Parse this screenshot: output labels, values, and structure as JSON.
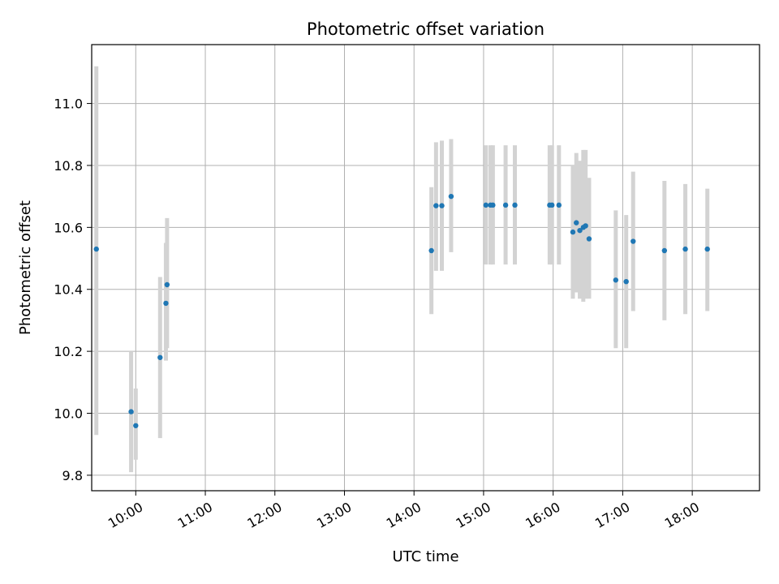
{
  "chart_data": {
    "type": "scatter",
    "title": "Photometric offset variation",
    "xlabel": "UTC time",
    "ylabel": "Photometric offset",
    "xlim": [
      "09:22",
      "18:58"
    ],
    "ylim": [
      9.75,
      11.19
    ],
    "grid": true,
    "legend": "none",
    "x_ticks": [
      "10:00",
      "11:00",
      "12:00",
      "13:00",
      "14:00",
      "15:00",
      "16:00",
      "17:00",
      "18:00"
    ],
    "y_ticks": [
      9.8,
      10.0,
      10.2,
      10.4,
      10.6,
      10.8,
      11.0
    ],
    "marker_color": "#1f77b4",
    "errorbar_color": "#d3d3d3",
    "series": [
      {
        "points": [
          {
            "time": "09:26",
            "y": 10.53,
            "low": 9.93,
            "high": 11.12
          },
          {
            "time": "09:56",
            "y": 10.005,
            "low": 9.81,
            "high": 10.2
          },
          {
            "time": "10:00",
            "y": 9.96,
            "low": 9.85,
            "high": 10.08
          },
          {
            "time": "10:21",
            "y": 10.18,
            "low": 9.92,
            "high": 10.44
          },
          {
            "time": "10:26",
            "y": 10.355,
            "low": 10.17,
            "high": 10.55
          },
          {
            "time": "10:27",
            "y": 10.415,
            "low": 10.21,
            "high": 10.63
          },
          {
            "time": "14:15",
            "y": 10.525,
            "low": 10.32,
            "high": 10.73
          },
          {
            "time": "14:19",
            "y": 10.67,
            "low": 10.46,
            "high": 10.875
          },
          {
            "time": "14:24",
            "y": 10.67,
            "low": 10.46,
            "high": 10.88
          },
          {
            "time": "14:32",
            "y": 10.7,
            "low": 10.52,
            "high": 10.885
          },
          {
            "time": "15:02",
            "y": 10.672,
            "low": 10.48,
            "high": 10.865
          },
          {
            "time": "15:06",
            "y": 10.672,
            "low": 10.48,
            "high": 10.865
          },
          {
            "time": "15:08",
            "y": 10.672,
            "low": 10.48,
            "high": 10.865
          },
          {
            "time": "15:19",
            "y": 10.672,
            "low": 10.48,
            "high": 10.865
          },
          {
            "time": "15:27",
            "y": 10.672,
            "low": 10.48,
            "high": 10.865
          },
          {
            "time": "15:57",
            "y": 10.672,
            "low": 10.48,
            "high": 10.865
          },
          {
            "time": "15:59",
            "y": 10.672,
            "low": 10.48,
            "high": 10.865
          },
          {
            "time": "16:05",
            "y": 10.672,
            "low": 10.48,
            "high": 10.865
          },
          {
            "time": "16:17",
            "y": 10.585,
            "low": 10.37,
            "high": 10.8
          },
          {
            "time": "16:20",
            "y": 10.615,
            "low": 10.39,
            "high": 10.84
          },
          {
            "time": "16:23",
            "y": 10.59,
            "low": 10.37,
            "high": 10.815
          },
          {
            "time": "16:26",
            "y": 10.6,
            "low": 10.36,
            "high": 10.85
          },
          {
            "time": "16:28",
            "y": 10.605,
            "low": 10.37,
            "high": 10.85
          },
          {
            "time": "16:31",
            "y": 10.563,
            "low": 10.37,
            "high": 10.76
          },
          {
            "time": "16:54",
            "y": 10.43,
            "low": 10.21,
            "high": 10.655
          },
          {
            "time": "17:03",
            "y": 10.425,
            "low": 10.21,
            "high": 10.64
          },
          {
            "time": "17:09",
            "y": 10.555,
            "low": 10.33,
            "high": 10.78
          },
          {
            "time": "17:36",
            "y": 10.525,
            "low": 10.3,
            "high": 10.75
          },
          {
            "time": "17:54",
            "y": 10.53,
            "low": 10.32,
            "high": 10.74
          },
          {
            "time": "18:13",
            "y": 10.53,
            "low": 10.33,
            "high": 10.725
          }
        ]
      }
    ]
  }
}
